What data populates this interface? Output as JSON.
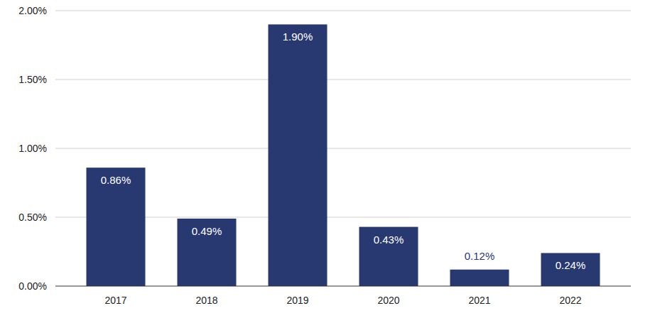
{
  "chart_data": {
    "type": "bar",
    "categories": [
      "2017",
      "2018",
      "2019",
      "2020",
      "2021",
      "2022"
    ],
    "values": [
      0.86,
      0.49,
      1.9,
      0.43,
      0.12,
      0.24
    ],
    "value_labels": [
      "0.86%",
      "0.49%",
      "1.90%",
      "0.43%",
      "0.12%",
      "0.24%"
    ],
    "color": "#283870",
    "ylim": [
      0,
      2
    ],
    "yticks": [
      {
        "value": 0,
        "label": "0.00%"
      },
      {
        "value": 0.5,
        "label": "0.50%"
      },
      {
        "value": 1,
        "label": "1.00%"
      },
      {
        "value": 1.5,
        "label": "1.50%"
      },
      {
        "value": 2,
        "label": "2.00%"
      }
    ],
    "grid": true,
    "data_labels": true
  }
}
